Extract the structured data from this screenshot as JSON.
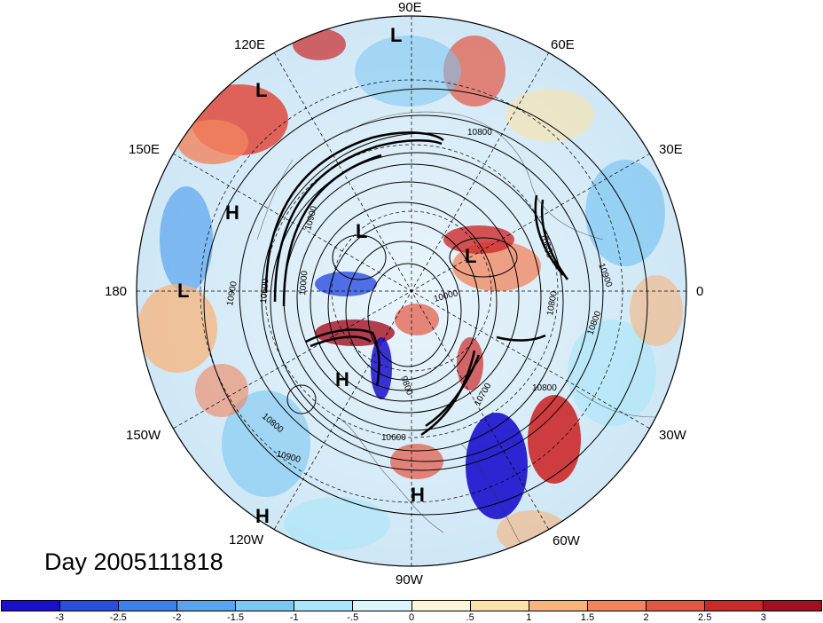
{
  "title": "Day 2005111818",
  "longitude_labels": {
    "e90": "90E",
    "e60": "60E",
    "e30": "30E",
    "zero": "0",
    "w30": "30W",
    "w60": "60W",
    "w90": "90W",
    "w120": "120W",
    "w150": "150W",
    "d180": "180",
    "e150": "150E",
    "e120": "120E"
  },
  "pressure_centers": [
    {
      "type": "L"
    },
    {
      "type": "L"
    },
    {
      "type": "H"
    },
    {
      "type": "L"
    },
    {
      "type": "L"
    },
    {
      "type": "L"
    },
    {
      "type": "H"
    },
    {
      "type": "H"
    },
    {
      "type": "H"
    }
  ],
  "contour_labels": [
    "10800",
    "10900",
    "10900",
    "10800",
    "10900",
    "10600",
    "10800",
    "10000",
    "10000",
    "9800",
    "10600",
    "10700",
    "10800",
    "10800",
    "10900",
    "10600"
  ],
  "colorbar": {
    "colors": [
      "#1a0fcc",
      "#2b4ee0",
      "#3f7fe8",
      "#5aa4ee",
      "#7cc6f2",
      "#a8e6f8",
      "#dcf5fb",
      "#fdf6d8",
      "#fbe2a8",
      "#f7b47c",
      "#f1845e",
      "#e45543",
      "#cc2a2a",
      "#a50f22"
    ],
    "tick_labels": [
      "-3",
      "-2.5",
      "-2",
      "-1.5",
      "-1",
      "-.5",
      "0",
      ".5",
      "1",
      "1.5",
      "2",
      "2.5",
      "3"
    ]
  }
}
